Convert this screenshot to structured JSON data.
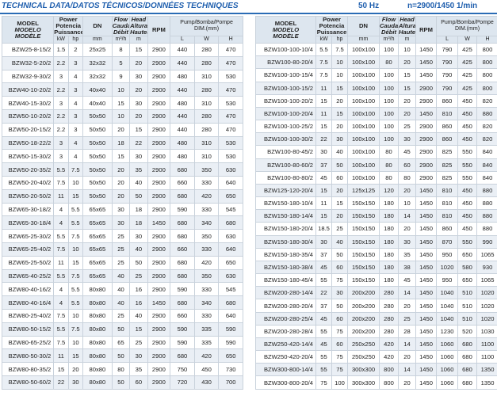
{
  "header": {
    "title": "TECHNICAL DATA/DATOS TÉCNICOS/DONNÉES TECHNIQUES",
    "frequency": "50 Hz",
    "speed": "n=2900/1450 1/min"
  },
  "columns": {
    "model": [
      "MODEL",
      "MODELO",
      "MODÈLE"
    ],
    "power": [
      "Power",
      "Potencia",
      "Puissance"
    ],
    "kw": "kW",
    "hp": "hp",
    "dn": "DN",
    "dn_unit": "mm",
    "flow": [
      "Flow",
      "Caudal",
      "Débit"
    ],
    "flow_unit": "m³/h",
    "head": [
      "Head",
      "Altura",
      "Hauteur"
    ],
    "head_unit": "m",
    "rpm": "RPM",
    "dim": [
      "Pump/Bomba/Pompe",
      "DIM.(mm)"
    ],
    "l": "L",
    "w": "W",
    "h": "H"
  },
  "tables": [
    {
      "rows": [
        [
          "BZW25-8-15/2",
          "1.5",
          "2",
          "25x25",
          "8",
          "15",
          "2900",
          "440",
          "280",
          "470"
        ],
        [
          "BZW32-5-20/2",
          "2.2",
          "3",
          "32x32",
          "5",
          "20",
          "2900",
          "440",
          "280",
          "470"
        ],
        [
          "BZW32-9-30/2",
          "3",
          "4",
          "32x32",
          "9",
          "30",
          "2900",
          "480",
          "310",
          "530"
        ],
        [
          "BZW40-10-20/2",
          "2.2",
          "3",
          "40x40",
          "10",
          "20",
          "2900",
          "440",
          "280",
          "470"
        ],
        [
          "BZW40-15-30/2",
          "3",
          "4",
          "40x40",
          "15",
          "30",
          "2900",
          "480",
          "310",
          "530"
        ],
        [
          "BZW50-10-20/2",
          "2.2",
          "3",
          "50x50",
          "10",
          "20",
          "2900",
          "440",
          "280",
          "470"
        ],
        [
          "BZW50-20-15/2",
          "2.2",
          "3",
          "50x50",
          "20",
          "15",
          "2900",
          "440",
          "280",
          "470"
        ],
        [
          "BZW50-18-22/2",
          "3",
          "4",
          "50x50",
          "18",
          "22",
          "2900",
          "480",
          "310",
          "530"
        ],
        [
          "BZW50-15-30/2",
          "3",
          "4",
          "50x50",
          "15",
          "30",
          "2900",
          "480",
          "310",
          "530"
        ],
        [
          "BZW50-20-35/2",
          "5.5",
          "7.5",
          "50x50",
          "20",
          "35",
          "2900",
          "680",
          "350",
          "630"
        ],
        [
          "BZW50-20-40/2",
          "7.5",
          "10",
          "50x50",
          "20",
          "40",
          "2900",
          "660",
          "330",
          "640"
        ],
        [
          "BZW50-20-50/2",
          "11",
          "15",
          "50x50",
          "20",
          "50",
          "2900",
          "680",
          "420",
          "650"
        ],
        [
          "BZW65-30-18/2",
          "4",
          "5.5",
          "65x65",
          "30",
          "18",
          "2900",
          "590",
          "330",
          "545"
        ],
        [
          "BZW65-30-18/4",
          "4",
          "5.5",
          "65x65",
          "30",
          "18",
          "1450",
          "680",
          "340",
          "680"
        ],
        [
          "BZW65-25-30/2",
          "5.5",
          "7.5",
          "65x65",
          "25",
          "30",
          "2900",
          "680",
          "350",
          "630"
        ],
        [
          "BZW65-25-40/2",
          "7.5",
          "10",
          "65x65",
          "25",
          "40",
          "2900",
          "660",
          "330",
          "640"
        ],
        [
          "BZW65-25-50/2",
          "11",
          "15",
          "65x65",
          "25",
          "50",
          "2900",
          "680",
          "420",
          "650"
        ],
        [
          "BZW65-40-25/2",
          "5.5",
          "7.5",
          "65x65",
          "40",
          "25",
          "2900",
          "680",
          "350",
          "630"
        ],
        [
          "BZW80-40-16/2",
          "4",
          "5.5",
          "80x80",
          "40",
          "16",
          "2900",
          "590",
          "330",
          "545"
        ],
        [
          "BZW80-40-16/4",
          "4",
          "5.5",
          "80x80",
          "40",
          "16",
          "1450",
          "680",
          "340",
          "680"
        ],
        [
          "BZW80-25-40/2",
          "7.5",
          "10",
          "80x80",
          "25",
          "40",
          "2900",
          "660",
          "330",
          "640"
        ],
        [
          "BZW80-50-15/2",
          "5.5",
          "7.5",
          "80x80",
          "50",
          "15",
          "2900",
          "590",
          "335",
          "590"
        ],
        [
          "BZW80-65-25/2",
          "7.5",
          "10",
          "80x80",
          "65",
          "25",
          "2900",
          "590",
          "335",
          "590"
        ],
        [
          "BZW80-50-30/2",
          "11",
          "15",
          "80x80",
          "50",
          "30",
          "2900",
          "680",
          "420",
          "650"
        ],
        [
          "BZW80-80-35/2",
          "15",
          "20",
          "80x80",
          "80",
          "35",
          "2900",
          "750",
          "450",
          "730"
        ],
        [
          "BZW80-50-60/2",
          "22",
          "30",
          "80x80",
          "50",
          "60",
          "2900",
          "720",
          "430",
          "700"
        ]
      ]
    },
    {
      "rows": [
        [
          "BZW100-100-10/4",
          "5.5",
          "7.5",
          "100x100",
          "100",
          "10",
          "1450",
          "790",
          "425",
          "800"
        ],
        [
          "BZW100-80-20/4",
          "7.5",
          "10",
          "100x100",
          "80",
          "20",
          "1450",
          "790",
          "425",
          "800"
        ],
        [
          "BZW100-100-15/4",
          "7.5",
          "10",
          "100x100",
          "100",
          "15",
          "1450",
          "790",
          "425",
          "800"
        ],
        [
          "BZW100-100-15/2",
          "11",
          "15",
          "100x100",
          "100",
          "15",
          "2900",
          "790",
          "425",
          "800"
        ],
        [
          "BZW100-100-20/2",
          "15",
          "20",
          "100x100",
          "100",
          "20",
          "2900",
          "860",
          "450",
          "820"
        ],
        [
          "BZW100-100-20/4",
          "11",
          "15",
          "100x100",
          "100",
          "20",
          "1450",
          "810",
          "450",
          "880"
        ],
        [
          "BZW100-100-25/2",
          "15",
          "20",
          "100x100",
          "100",
          "25",
          "2900",
          "860",
          "450",
          "820"
        ],
        [
          "BZW100-100-30/2",
          "22",
          "30",
          "100x100",
          "100",
          "30",
          "2900",
          "860",
          "450",
          "820"
        ],
        [
          "BZW100-80-45/2",
          "30",
          "40",
          "100x100",
          "80",
          "45",
          "2900",
          "825",
          "550",
          "840"
        ],
        [
          "BZW100-80-60/2",
          "37",
          "50",
          "100x100",
          "80",
          "60",
          "2900",
          "825",
          "550",
          "840"
        ],
        [
          "BZW100-80-80/2",
          "45",
          "60",
          "100x100",
          "80",
          "80",
          "2900",
          "825",
          "550",
          "840"
        ],
        [
          "BZW125-120-20/4",
          "15",
          "20",
          "125x125",
          "120",
          "20",
          "1450",
          "810",
          "450",
          "880"
        ],
        [
          "BZW150-180-10/4",
          "11",
          "15",
          "150x150",
          "180",
          "10",
          "1450",
          "810",
          "450",
          "880"
        ],
        [
          "BZW150-180-14/4",
          "15",
          "20",
          "150x150",
          "180",
          "14",
          "1450",
          "810",
          "450",
          "880"
        ],
        [
          "BZW150-180-20/4",
          "18.5",
          "25",
          "150x150",
          "180",
          "20",
          "1450",
          "860",
          "450",
          "880"
        ],
        [
          "BZW150-180-30/4",
          "30",
          "40",
          "150x150",
          "180",
          "30",
          "1450",
          "870",
          "550",
          "990"
        ],
        [
          "BZW150-180-35/4",
          "37",
          "50",
          "150x150",
          "180",
          "35",
          "1450",
          "950",
          "650",
          "1065"
        ],
        [
          "BZW150-180-38/4",
          "45",
          "60",
          "150x150",
          "180",
          "38",
          "1450",
          "1020",
          "580",
          "930"
        ],
        [
          "BZW150-180-45/4",
          "55",
          "75",
          "150x150",
          "180",
          "45",
          "1450",
          "950",
          "650",
          "1065"
        ],
        [
          "BZW200-280-14/4",
          "22",
          "30",
          "200x200",
          "280",
          "14",
          "1450",
          "1040",
          "510",
          "1020"
        ],
        [
          "BZW200-280-20/4",
          "37",
          "50",
          "200x200",
          "280",
          "20",
          "1450",
          "1040",
          "510",
          "1020"
        ],
        [
          "BZW200-280-25/4",
          "45",
          "60",
          "200x200",
          "280",
          "25",
          "1450",
          "1040",
          "510",
          "1020"
        ],
        [
          "BZW200-280-28/4",
          "55",
          "75",
          "200x200",
          "280",
          "28",
          "1450",
          "1230",
          "520",
          "1030"
        ],
        [
          "BZW250-420-14/4",
          "45",
          "60",
          "250x250",
          "420",
          "14",
          "1450",
          "1060",
          "680",
          "1100"
        ],
        [
          "BZW250-420-20/4",
          "55",
          "75",
          "250x250",
          "420",
          "20",
          "1450",
          "1060",
          "680",
          "1100"
        ],
        [
          "BZW300-800-14/4",
          "55",
          "75",
          "300x300",
          "800",
          "14",
          "1450",
          "1060",
          "680",
          "1350"
        ],
        [
          "BZW300-800-20/4",
          "75",
          "100",
          "300x300",
          "800",
          "20",
          "1450",
          "1060",
          "680",
          "1350"
        ]
      ]
    }
  ]
}
